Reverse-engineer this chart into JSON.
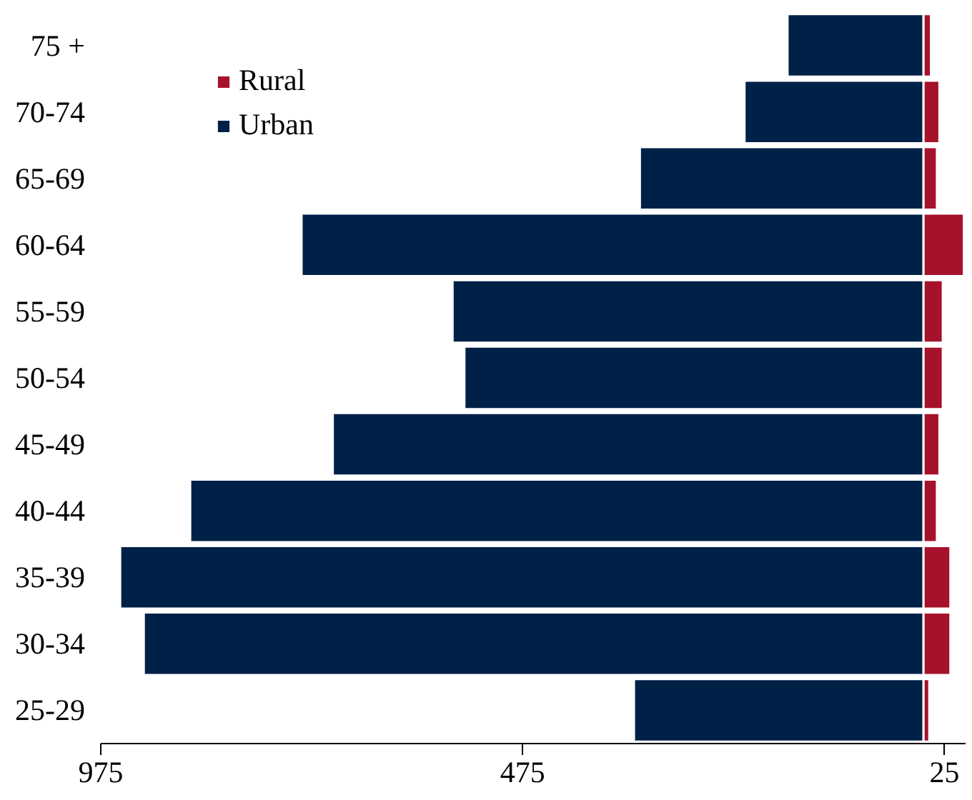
{
  "chart_data": {
    "type": "bar",
    "orientation": "horizontal",
    "categories": [
      "75 +",
      "70-74",
      "65-69",
      "60-64",
      "55-59",
      "50-54",
      "45-49",
      "40-44",
      "35-39",
      "30-34",
      "25-29"
    ],
    "series": [
      {
        "name": "Rural",
        "color": "#a6112b",
        "values": [
          9,
          19,
          16,
          48,
          23,
          23,
          19,
          16,
          32,
          32,
          7
        ]
      },
      {
        "name": "Urban",
        "color": "#002147",
        "values": [
          -161,
          -212,
          -336,
          -737,
          -558,
          -544,
          -700,
          -869,
          -952,
          -924,
          -343
        ]
      }
    ],
    "xlim": [
      -975,
      50
    ],
    "xticks": [
      {
        "value": -975,
        "label": "975"
      },
      {
        "value": -475,
        "label": "475"
      },
      25
    ],
    "stacked": true,
    "grid": false,
    "legend": "top left"
  }
}
